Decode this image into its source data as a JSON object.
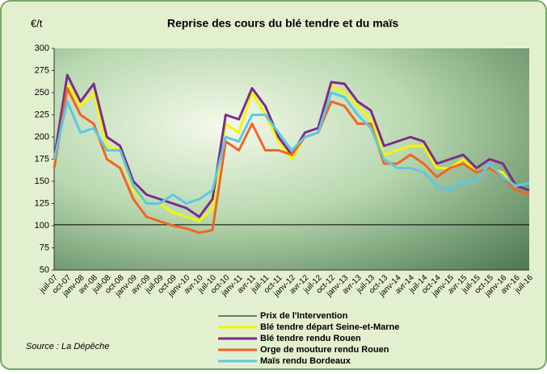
{
  "chart_data": {
    "type": "line",
    "title": "Reprise des cours du blé tendre et du maïs",
    "y_label": "€/t",
    "source": "Source : La Dépêche",
    "categories": [
      "juil-07",
      "oct-07",
      "janv-08",
      "avr-08",
      "juil-08",
      "oct-08",
      "janv-09",
      "avr-09",
      "juil-09",
      "oct-09",
      "janv-10",
      "avr-10",
      "juil-10",
      "oct-10",
      "janv-11",
      "avr-11",
      "juil-11",
      "oct-11",
      "janv-12",
      "avr-12",
      "juil-12",
      "oct-12",
      "janv-13",
      "avr-13",
      "juil-13",
      "oct-13",
      "janv-14",
      "avr-14",
      "juil-14",
      "oct-14",
      "janv-15",
      "avr-15",
      "juil-15",
      "oct-15",
      "janv-16",
      "avr-16",
      "juil-16"
    ],
    "series": [
      {
        "name": "Prix de l'Intervention",
        "color": "#000000",
        "values": [
          101,
          101,
          101,
          101,
          101,
          101,
          101,
          101,
          101,
          101,
          101,
          101,
          101,
          101,
          101,
          101,
          101,
          101,
          101,
          101,
          101,
          101,
          101,
          101,
          101,
          101,
          101,
          101,
          101,
          101,
          101,
          101,
          101,
          101,
          101,
          101,
          101
        ]
      },
      {
        "name": "Blé tendre départ Seine-et-Marne",
        "color": "#f5f500",
        "values": [
          170,
          260,
          235,
          250,
          190,
          185,
          140,
          125,
          125,
          115,
          110,
          105,
          120,
          215,
          205,
          250,
          225,
          195,
          175,
          200,
          205,
          258,
          250,
          235,
          220,
          180,
          185,
          190,
          190,
          165,
          165,
          175,
          160,
          165,
          160,
          140,
          135
        ]
      },
      {
        "name": "Blé tendre rendu Rouen",
        "color": "#7b2c8c",
        "values": [
          175,
          270,
          240,
          260,
          200,
          190,
          150,
          135,
          130,
          125,
          120,
          110,
          130,
          225,
          220,
          255,
          235,
          200,
          180,
          205,
          210,
          262,
          260,
          240,
          230,
          190,
          195,
          200,
          195,
          170,
          175,
          180,
          165,
          175,
          170,
          145,
          140
        ]
      },
      {
        "name": "Orge de mouture rendu Rouen",
        "color": "#f26522",
        "values": [
          165,
          255,
          225,
          215,
          175,
          165,
          130,
          110,
          105,
          100,
          97,
          92,
          95,
          195,
          185,
          215,
          185,
          185,
          180,
          200,
          205,
          240,
          235,
          215,
          215,
          170,
          170,
          180,
          170,
          155,
          165,
          170,
          160,
          165,
          155,
          140,
          135
        ]
      },
      {
        "name": "Maïs rendu Bordeaux",
        "color": "#5bc8e6",
        "values": [
          175,
          240,
          205,
          210,
          185,
          185,
          145,
          125,
          125,
          135,
          125,
          130,
          140,
          200,
          195,
          225,
          225,
          205,
          185,
          200,
          205,
          250,
          245,
          225,
          210,
          175,
          165,
          165,
          160,
          145,
          140,
          150,
          150,
          170,
          155,
          145,
          148
        ]
      }
    ],
    "ylim": [
      50,
      300
    ],
    "yticks": [
      50,
      75,
      100,
      125,
      150,
      175,
      200,
      225,
      250,
      275,
      300
    ],
    "grid": false
  }
}
